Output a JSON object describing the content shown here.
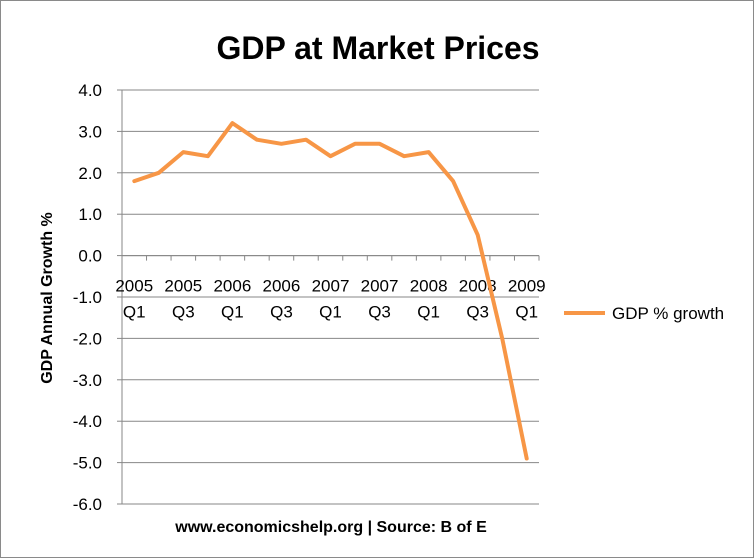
{
  "chart_data": {
    "type": "line",
    "title": "GDP at Market Prices",
    "xlabel": "www.economicshelp.org | Source: B of E",
    "ylabel": "GDP Annual Growth %",
    "ylim": [
      -6.0,
      4.0
    ],
    "yticks": [
      "4.0",
      "3.0",
      "2.0",
      "1.0",
      "0.0",
      "-1.0",
      "-2.0",
      "-3.0",
      "-4.0",
      "-5.0",
      "-6.0"
    ],
    "ytick_values": [
      4,
      3,
      2,
      1,
      0,
      -1,
      -2,
      -3,
      -4,
      -5,
      -6
    ],
    "x_tick_labels": [
      {
        "year": "2005",
        "quarter": "Q1"
      },
      {
        "year": "2005",
        "quarter": "Q3"
      },
      {
        "year": "2006",
        "quarter": "Q1"
      },
      {
        "year": "2006",
        "quarter": "Q3"
      },
      {
        "year": "2007",
        "quarter": "Q1"
      },
      {
        "year": "2007",
        "quarter": "Q3"
      },
      {
        "year": "2008",
        "quarter": "Q1"
      },
      {
        "year": "2008",
        "quarter": "Q3"
      },
      {
        "year": "2009",
        "quarter": "Q1"
      }
    ],
    "grid": true,
    "legend_position": "right",
    "series": [
      {
        "name": "GDP % growth",
        "color": "#f79646",
        "values": [
          1.8,
          2.0,
          2.5,
          2.4,
          3.2,
          2.8,
          2.7,
          2.8,
          2.4,
          2.7,
          2.7,
          2.4,
          2.5,
          1.8,
          0.5,
          -2.0,
          -4.9
        ]
      }
    ]
  }
}
